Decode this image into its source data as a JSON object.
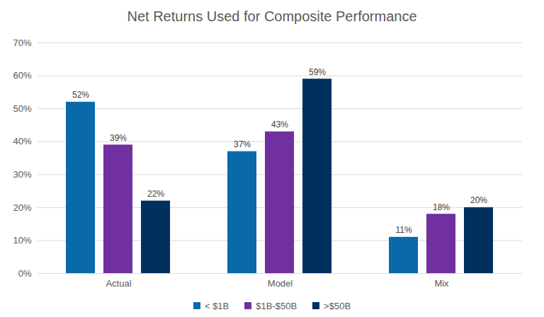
{
  "chart_data": {
    "type": "bar",
    "title": "Net Returns Used for Composite Performance",
    "categories": [
      "Actual",
      "Model",
      "Mix"
    ],
    "series": [
      {
        "name": "< $1B",
        "color": "#0a6aa9",
        "values": [
          52,
          37,
          11
        ],
        "value_labels": [
          "52%",
          "37%",
          "11%"
        ]
      },
      {
        "name": "$1B-$50B",
        "color": "#7030a0",
        "values": [
          39,
          43,
          18
        ],
        "value_labels": [
          "39%",
          "43%",
          "18%"
        ]
      },
      {
        "name": ">$50B",
        "color": "#00305e",
        "values": [
          22,
          59,
          20
        ],
        "value_labels": [
          "22%",
          "59%",
          "20%"
        ]
      }
    ],
    "ylim": [
      0,
      70
    ],
    "yticks": [
      {
        "value": 0,
        "label": "0%"
      },
      {
        "value": 10,
        "label": "10%"
      },
      {
        "value": 20,
        "label": "20%"
      },
      {
        "value": 30,
        "label": "30%"
      },
      {
        "value": 40,
        "label": "40%"
      },
      {
        "value": 50,
        "label": "50%"
      },
      {
        "value": 60,
        "label": "60%"
      },
      {
        "value": 70,
        "label": "70%"
      }
    ],
    "grid": true,
    "data_labels": true,
    "legend": "bottom"
  }
}
